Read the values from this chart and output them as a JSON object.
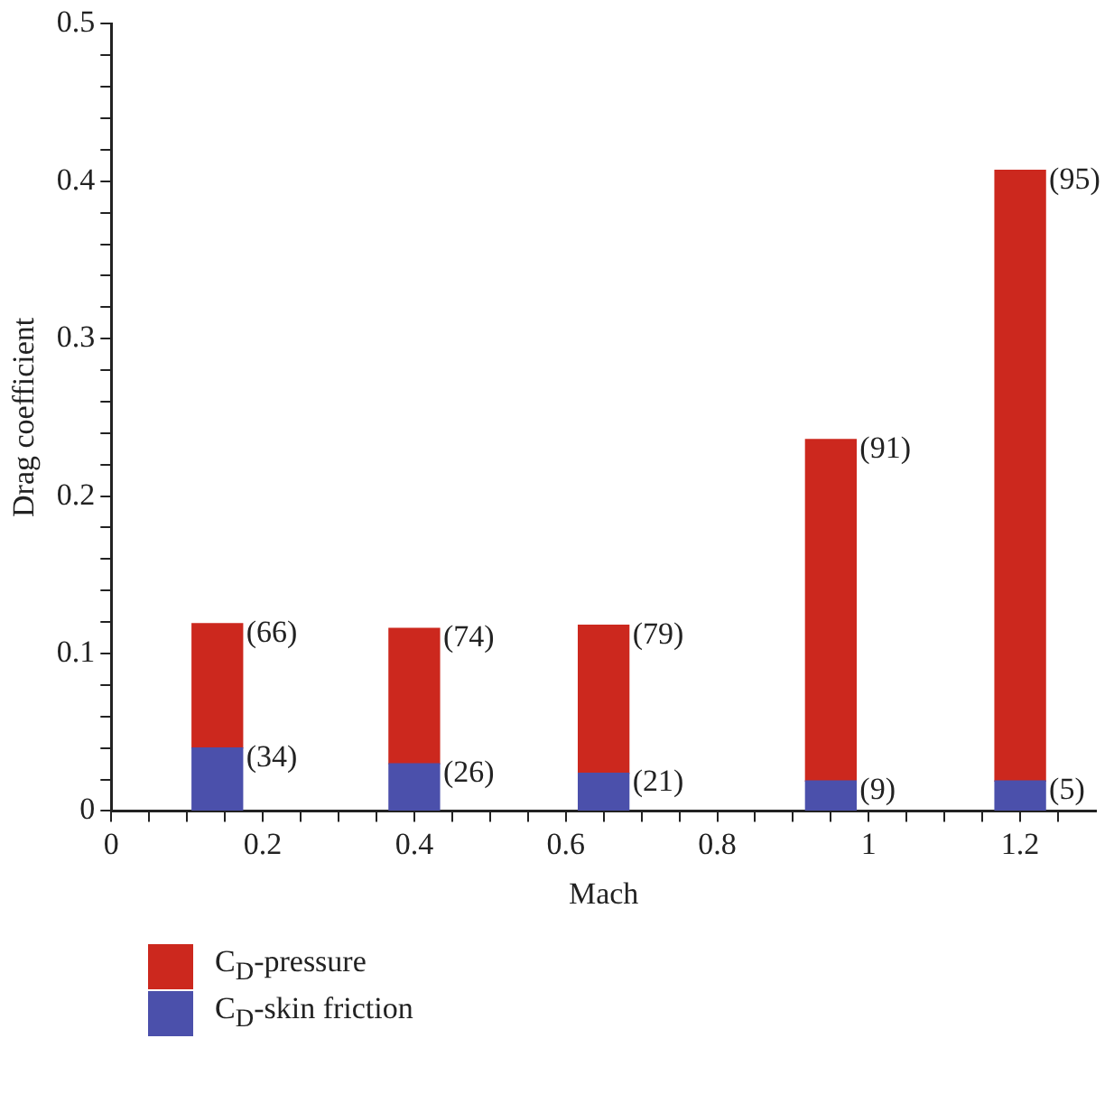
{
  "chart_data": {
    "type": "bar",
    "stacked": true,
    "xlabel": "Mach",
    "ylabel": "Drag coefficient",
    "x": [
      0.14,
      0.4,
      0.65,
      0.95,
      1.2
    ],
    "series": [
      {
        "name": "C$_{D}$-skin friction",
        "color": "#4b50ab",
        "values": [
          0.04,
          0.03,
          0.024,
          0.019,
          0.019
        ]
      },
      {
        "name": "C$_{D}$-pressure",
        "color": "#cc281e",
        "values": [
          0.079,
          0.086,
          0.094,
          0.217,
          0.388
        ]
      }
    ],
    "annotations": [
      {
        "text": "(34)",
        "x": 0.14,
        "y": 0.04
      },
      {
        "text": "(26)",
        "x": 0.4,
        "y": 0.03
      },
      {
        "text": "(21)",
        "x": 0.65,
        "y": 0.024
      },
      {
        "text": "(9)",
        "x": 0.95,
        "y": 0.019
      },
      {
        "text": "(5)",
        "x": 1.2,
        "y": 0.019
      },
      {
        "text": "(66)",
        "x": 0.14,
        "y": 0.119
      },
      {
        "text": "(74)",
        "x": 0.4,
        "y": 0.116
      },
      {
        "text": "(79)",
        "x": 0.65,
        "y": 0.118
      },
      {
        "text": "(91)",
        "x": 0.95,
        "y": 0.236
      },
      {
        "text": "(95)",
        "x": 1.2,
        "y": 0.407
      }
    ],
    "xlim": [
      0,
      1.3
    ],
    "xticks": [
      0,
      {
        "value": 0.05,
        "label": null
      },
      0.2,
      {
        "value": 0.1,
        "label": null
      },
      {
        "value": 0.15,
        "label": null
      },
      {
        "value": 0.25,
        "label": null
      },
      {
        "value": 0.3,
        "label": null
      },
      {
        "value": 0.35,
        "label": null
      },
      0.4,
      {
        "value": 0.45,
        "label": null
      },
      {
        "value": 0.5,
        "label": null
      },
      {
        "value": 0.55,
        "label": null
      },
      0.6,
      {
        "value": 0.65,
        "label": null
      },
      {
        "value": 0.7,
        "label": null
      },
      {
        "value": 0.75,
        "label": null
      },
      0.8,
      {
        "value": 0.85,
        "label": null
      },
      {
        "value": 0.9,
        "label": null
      },
      {
        "value": 0.95,
        "label": null
      },
      1,
      {
        "value": 1.05,
        "label": null
      },
      {
        "value": 1.1,
        "label": null
      },
      {
        "value": 1.15,
        "label": null
      },
      1.2,
      {
        "value": 1.25,
        "label": null
      }
    ],
    "ylim": [
      0,
      0.5
    ],
    "yticks": [
      0,
      {
        "value": 0.02,
        "label": null
      },
      {
        "value": 0.04,
        "label": null
      },
      {
        "value": 0.06,
        "label": null
      },
      {
        "value": 0.08,
        "label": null
      },
      0.1,
      {
        "value": 0.12,
        "label": null
      },
      {
        "value": 0.14,
        "label": null
      },
      {
        "value": 0.16,
        "label": null
      },
      {
        "value": 0.18,
        "label": null
      },
      0.2,
      {
        "value": 0.22,
        "label": null
      },
      {
        "value": 0.24,
        "label": null
      },
      {
        "value": 0.26,
        "label": null
      },
      {
        "value": 0.28,
        "label": null
      },
      0.3,
      {
        "value": 0.32,
        "label": null
      },
      {
        "value": 0.34,
        "label": null
      },
      {
        "value": 0.36,
        "label": null
      },
      {
        "value": 0.38,
        "label": null
      },
      0.4,
      {
        "value": 0.42,
        "label": null
      },
      {
        "value": 0.44,
        "label": null
      },
      {
        "value": 0.46,
        "label": null
      },
      {
        "value": 0.48,
        "label": null
      },
      0.5
    ],
    "grid": false,
    "legend": "bottom"
  }
}
